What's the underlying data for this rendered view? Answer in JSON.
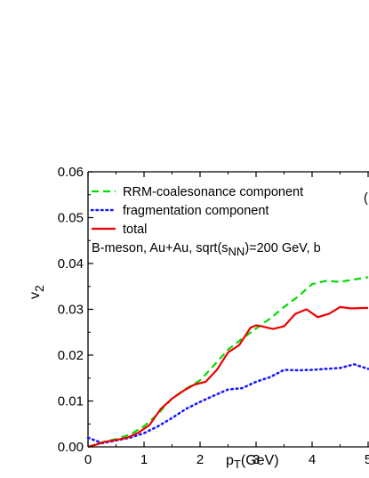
{
  "chart_data": {
    "type": "line",
    "xlabel_main": "p",
    "xlabel_sub": "T",
    "xlabel_unit": "(GeV)",
    "ylabel_main": "v",
    "ylabel_sub": "2",
    "xlim": [
      0,
      5
    ],
    "ylim": [
      0,
      0.06
    ],
    "x_ticks": [
      "0",
      "1",
      "2",
      "3",
      "4",
      "5"
    ],
    "y_ticks": [
      "0.00",
      "0.01",
      "0.02",
      "0.03",
      "0.04",
      "0.05",
      "0.06"
    ],
    "grid": false,
    "legend_position": "top-left",
    "annotation": {
      "prefix": "B-meson, Au+Au, sqrt(s",
      "sub": "NN",
      "suffix": ")=200 GeV, b"
    },
    "panel_label_partial": "(",
    "series": [
      {
        "name": "RRM-coalesonance component",
        "color": "#00dd00",
        "dash": "dashed",
        "x": [
          0.0,
          0.25,
          0.5,
          0.75,
          1.0,
          1.25,
          1.5,
          1.75,
          2.0,
          2.25,
          2.5,
          2.75,
          3.0,
          3.25,
          3.5,
          3.75,
          4.0,
          4.25,
          4.5,
          4.75,
          5.0
        ],
        "y": [
          0.0,
          0.001,
          0.0017,
          0.0027,
          0.0045,
          0.0072,
          0.0106,
          0.0127,
          0.0145,
          0.0178,
          0.0212,
          0.0236,
          0.0258,
          0.028,
          0.0305,
          0.0328,
          0.0355,
          0.0362,
          0.036,
          0.0365,
          0.037
        ]
      },
      {
        "name": "fragmentation component",
        "color": "#1a1aff",
        "dash": "dotted",
        "x": [
          0.0,
          0.25,
          0.5,
          0.75,
          1.0,
          1.25,
          1.5,
          1.75,
          2.0,
          2.25,
          2.5,
          2.75,
          3.0,
          3.25,
          3.5,
          3.75,
          4.0,
          4.25,
          4.5,
          4.75,
          5.0
        ],
        "y": [
          0.002,
          0.0008,
          0.0014,
          0.002,
          0.003,
          0.0045,
          0.0063,
          0.0083,
          0.0098,
          0.0112,
          0.0125,
          0.0128,
          0.0142,
          0.0152,
          0.0168,
          0.0167,
          0.0168,
          0.017,
          0.0172,
          0.018,
          0.017
        ]
      },
      {
        "name": "total",
        "color": "#ee0000",
        "dash": "solid",
        "x": [
          0.0,
          0.15,
          0.3,
          0.5,
          0.7,
          0.9,
          1.1,
          1.3,
          1.5,
          1.7,
          1.9,
          2.1,
          2.3,
          2.5,
          2.7,
          2.9,
          3.0,
          3.1,
          3.3,
          3.5,
          3.7,
          3.9,
          4.1,
          4.3,
          4.5,
          4.7,
          4.9,
          5.0
        ],
        "y": [
          0.0,
          0.0005,
          0.0011,
          0.0015,
          0.002,
          0.0031,
          0.0048,
          0.0083,
          0.0105,
          0.0122,
          0.0136,
          0.0142,
          0.0168,
          0.0206,
          0.0222,
          0.026,
          0.0265,
          0.0263,
          0.0257,
          0.0263,
          0.029,
          0.03,
          0.0283,
          0.029,
          0.0305,
          0.0302,
          0.0303,
          0.0303
        ]
      }
    ]
  }
}
